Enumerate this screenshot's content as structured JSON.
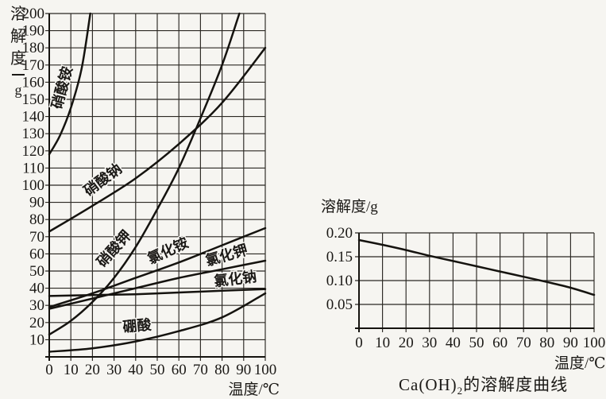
{
  "page": {
    "background_color": "#f6f5f1",
    "ink_color": "#15130f"
  },
  "chart_data": [
    {
      "type": "line",
      "name": "solubility-curves-common-salts",
      "ylabel": "溶解度/g",
      "ylabel_parts": {
        "chars": [
          "溶",
          "解",
          "度"
        ],
        "unit": "g"
      },
      "xlabel": "温度/℃",
      "xlim": [
        0,
        100
      ],
      "ylim": [
        0,
        200
      ],
      "grid": true,
      "xticks": [
        0,
        10,
        20,
        30,
        40,
        50,
        60,
        70,
        80,
        90,
        100
      ],
      "xtick_labels": [
        "0",
        "10",
        "20",
        "30",
        "40",
        "50",
        "60",
        "70",
        "80",
        "90",
        "100"
      ],
      "yticks": [
        10,
        20,
        30,
        40,
        50,
        60,
        70,
        80,
        90,
        100,
        110,
        120,
        130,
        140,
        150,
        160,
        170,
        180,
        190,
        200
      ],
      "ytick_labels": [
        "10",
        "20",
        "30",
        "40",
        "50",
        "60",
        "70",
        "80",
        "90",
        "100",
        "110",
        "120",
        "130",
        "140",
        "150",
        "160",
        "170",
        "180",
        "190",
        "200"
      ],
      "series": [
        {
          "name": "硝酸铵",
          "x": [
            0,
            5,
            10,
            15,
            19
          ],
          "y": [
            118,
            129,
            145,
            168,
            200
          ],
          "label": {
            "px": 84,
            "py": 112,
            "rot": -75
          }
        },
        {
          "name": "硝酸钠",
          "x": [
            0,
            20,
            40,
            60,
            80,
            100
          ],
          "y": [
            73,
            88,
            104,
            124,
            148,
            180
          ],
          "label": {
            "px": 133,
            "py": 231,
            "rot": -37
          }
        },
        {
          "name": "硝酸钾",
          "x": [
            0,
            10,
            20,
            30,
            40,
            50,
            60,
            70,
            80,
            88
          ],
          "y": [
            13,
            21,
            32,
            46,
            64,
            86,
            110,
            139,
            170,
            200
          ],
          "label": {
            "px": 148,
            "py": 317,
            "rot": -48
          }
        },
        {
          "name": "氯化铵",
          "x": [
            0,
            20,
            40,
            60,
            80,
            100
          ],
          "y": [
            29,
            37,
            46,
            55,
            65,
            75
          ],
          "label": {
            "px": 214,
            "py": 321,
            "rot": -25
          }
        },
        {
          "name": "氯化钾",
          "x": [
            0,
            20,
            40,
            60,
            80,
            100
          ],
          "y": [
            28,
            34,
            40,
            46,
            51,
            56
          ],
          "label": {
            "px": 287,
            "py": 327,
            "rot": -16
          }
        },
        {
          "name": "氯化钠",
          "x": [
            0,
            20,
            40,
            60,
            80,
            100
          ],
          "y": [
            35.5,
            36,
            36.5,
            37.5,
            38.5,
            39.5
          ],
          "label": {
            "px": 297,
            "py": 357,
            "rot": -7
          }
        },
        {
          "name": "硼酸",
          "x": [
            0,
            20,
            40,
            60,
            80,
            100
          ],
          "y": [
            3,
            5,
            9,
            15,
            23,
            37
          ],
          "label": {
            "px": 173,
            "py": 416,
            "rot": -5
          }
        }
      ]
    },
    {
      "type": "line",
      "name": "caoh2-solubility-curve",
      "caption": "Ca(OH)2的溶解度曲线",
      "caption_parts": {
        "formula_pre": "Ca(OH)",
        "formula_sub": "2",
        "suffix": "的溶解度曲线"
      },
      "ylabel": "溶解度/g",
      "xlabel": "温度/℃",
      "xlim": [
        0,
        100
      ],
      "ylim": [
        0,
        0.2
      ],
      "grid": true,
      "xticks": [
        0,
        10,
        20,
        30,
        40,
        50,
        60,
        70,
        80,
        90,
        100
      ],
      "xtick_labels": [
        "0",
        "10",
        "20",
        "30",
        "40",
        "50",
        "60",
        "70",
        "80",
        "90",
        "100"
      ],
      "yticks": [
        0.05,
        0.1,
        0.15,
        0.2
      ],
      "ytick_labels": [
        "0.05",
        "0.10",
        "0.15",
        "0.20"
      ],
      "series": [
        {
          "name": "Ca(OH)2",
          "x": [
            0,
            10,
            20,
            30,
            40,
            50,
            60,
            70,
            80,
            90,
            100
          ],
          "y": [
            0.185,
            0.175,
            0.164,
            0.152,
            0.141,
            0.13,
            0.119,
            0.108,
            0.097,
            0.085,
            0.07
          ]
        }
      ]
    }
  ]
}
